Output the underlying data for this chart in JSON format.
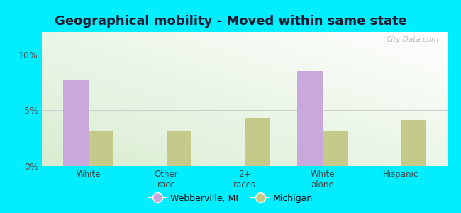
{
  "title": "Geographical mobility - Moved within same state",
  "categories": [
    "White",
    "Other\nrace",
    "2+\nraces",
    "White\nalone",
    "Hispanic"
  ],
  "webberville_values": [
    7.7,
    0,
    0,
    8.5,
    0
  ],
  "michigan_values": [
    3.2,
    3.2,
    4.3,
    3.2,
    4.1
  ],
  "webberville_color": "#c9a8dc",
  "michigan_color": "#c5c98a",
  "background_outer": "#00eeff",
  "title_fontsize": 13,
  "title_color": "#1a1a2e",
  "ylim": [
    0,
    12
  ],
  "yticks": [
    0,
    5,
    10
  ],
  "ytick_labels": [
    "0%",
    "5%",
    "10%"
  ],
  "bar_width": 0.32,
  "legend_webberville": "Webberville, MI",
  "legend_michigan": "Michigan",
  "watermark": "City-Data.com"
}
